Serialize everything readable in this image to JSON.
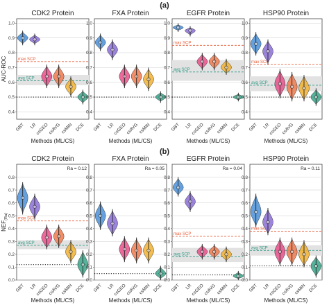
{
  "panel_letters": [
    "(a)",
    "(b)"
  ],
  "method_colors": {
    "GBT": "#4a90d9",
    "LR": "#8b6fd6",
    "csGEO": "#e8508a",
    "csAVG": "#f07a4e",
    "csMIN": "#f2b233",
    "DCE": "#3aa58a"
  },
  "chart_data": [
    {
      "type": "violin",
      "row": 0,
      "title": "CDK2 Protein",
      "ylabel": "AUC-ROC",
      "xlabel": "Methods (ML/CS)",
      "ylim": [
        0.35,
        1.03
      ],
      "yticks": [
        0.4,
        0.5,
        0.6,
        0.7,
        0.8,
        0.9,
        1.0
      ],
      "categories": [
        "GBT",
        "LR",
        "csGEO",
        "csAVG",
        "csMIN",
        "DCE"
      ],
      "medians": [
        0.9,
        0.89,
        0.64,
        0.64,
        0.57,
        0.5
      ],
      "ranges": [
        [
          0.86,
          0.94
        ],
        [
          0.86,
          0.92
        ],
        [
          0.57,
          0.71
        ],
        [
          0.57,
          0.71
        ],
        [
          0.51,
          0.63
        ],
        [
          0.46,
          0.54
        ]
      ],
      "max_scp": 0.74,
      "avg_scp": 0.61,
      "scp_band": [
        0.58,
        0.65
      ],
      "random_line": 0.5,
      "max_label": "max SCP",
      "avg_label": "avg SCP"
    },
    {
      "type": "violin",
      "row": 0,
      "title": "FXA Protein",
      "ylabel": "",
      "xlabel": "Methods (ML/CS)",
      "ylim": [
        0.35,
        1.03
      ],
      "yticks": [
        0.4,
        0.5,
        0.6,
        0.7,
        0.8,
        0.9,
        1.0
      ],
      "categories": [
        "GBT",
        "LR",
        "csGEO",
        "csAVG",
        "csMIN",
        "DCE"
      ],
      "medians": [
        0.87,
        0.82,
        0.64,
        0.64,
        0.62,
        0.5
      ],
      "ranges": [
        [
          0.82,
          0.92
        ],
        [
          0.76,
          0.88
        ],
        [
          0.57,
          0.71
        ],
        [
          0.57,
          0.71
        ],
        [
          0.55,
          0.69
        ],
        [
          0.47,
          0.53
        ]
      ],
      "max_scp": null,
      "avg_scp": null,
      "scp_band": null,
      "random_line": 0.5,
      "max_label": "",
      "avg_label": ""
    },
    {
      "type": "violin",
      "row": 0,
      "title": "EGFR Protein",
      "ylabel": "",
      "xlabel": "Methods (ML/CS)",
      "ylim": [
        0.35,
        1.03
      ],
      "yticks": [
        0.4,
        0.5,
        0.6,
        0.7,
        0.8,
        0.9,
        1.0
      ],
      "categories": [
        "GBT",
        "LR",
        "csGEO",
        "csAVG",
        "csMIN",
        "DCE"
      ],
      "medians": [
        0.97,
        0.95,
        0.74,
        0.74,
        0.7,
        0.5
      ],
      "ranges": [
        [
          0.95,
          0.99
        ],
        [
          0.92,
          0.97
        ],
        [
          0.69,
          0.79
        ],
        [
          0.69,
          0.79
        ],
        [
          0.66,
          0.75
        ],
        [
          0.48,
          0.52
        ]
      ],
      "max_scp": 0.85,
      "avg_scp": 0.67,
      "scp_band": [
        0.61,
        0.75
      ],
      "random_line": 0.5,
      "max_label": "max SCP",
      "avg_label": "avg SCP"
    },
    {
      "type": "violin",
      "row": 0,
      "title": "HSP90 Protein",
      "ylabel": "",
      "xlabel": "Methods (ML/CS)",
      "ylim": [
        0.35,
        1.03
      ],
      "yticks": [
        0.4,
        0.5,
        0.6,
        0.7,
        0.8,
        0.9,
        1.0
      ],
      "categories": [
        "GBT",
        "LR",
        "csGEO",
        "csAVG",
        "csMIN",
        "DCE"
      ],
      "medians": [
        0.86,
        0.81,
        0.59,
        0.57,
        0.56,
        0.5
      ],
      "ranges": [
        [
          0.79,
          0.93
        ],
        [
          0.73,
          0.88
        ],
        [
          0.5,
          0.68
        ],
        [
          0.48,
          0.66
        ],
        [
          0.48,
          0.64
        ],
        [
          0.45,
          0.55
        ]
      ],
      "max_scp": 0.72,
      "avg_scp": 0.58,
      "scp_band": [
        0.54,
        0.64
      ],
      "random_line": 0.5,
      "max_label": "max SCP",
      "avg_label": "avg SCP"
    },
    {
      "type": "violin",
      "row": 1,
      "title": "CDK2 Protein",
      "ra": "Ra = 0.12",
      "ylabel": "NEF",
      "ylabel_sub": "(Ra)",
      "xlabel": "Methods (ML/CS)",
      "ylim": [
        0.0,
        0.9
      ],
      "yticks": [
        0.0,
        0.1,
        0.2,
        0.3,
        0.4,
        0.5,
        0.6,
        0.7,
        0.8
      ],
      "categories": [
        "GBT",
        "LR",
        "csGEO",
        "csAVG",
        "csMIN",
        "DCE"
      ],
      "medians": [
        0.64,
        0.57,
        0.33,
        0.34,
        0.22,
        0.12
      ],
      "ranges": [
        [
          0.52,
          0.75
        ],
        [
          0.48,
          0.66
        ],
        [
          0.25,
          0.42
        ],
        [
          0.26,
          0.42
        ],
        [
          0.14,
          0.3
        ],
        [
          0.03,
          0.22
        ]
      ],
      "max_scp": 0.46,
      "avg_scp": 0.27,
      "scp_band": [
        0.24,
        0.31
      ],
      "random_line": 0.12,
      "max_label": "max SCP",
      "avg_label": "avg SCP"
    },
    {
      "type": "violin",
      "row": 1,
      "title": "FXA Protein",
      "ra": "Ra = 0.05",
      "ylabel": "",
      "xlabel": "Methods (ML/CS)",
      "ylim": [
        0.0,
        0.9
      ],
      "yticks": [
        0.0,
        0.1,
        0.2,
        0.3,
        0.4,
        0.5,
        0.6,
        0.7,
        0.8
      ],
      "categories": [
        "GBT",
        "LR",
        "csGEO",
        "csAVG",
        "csMIN",
        "DCE"
      ],
      "medians": [
        0.5,
        0.44,
        0.24,
        0.23,
        0.23,
        0.05
      ],
      "ranges": [
        [
          0.4,
          0.6
        ],
        [
          0.35,
          0.54
        ],
        [
          0.15,
          0.33
        ],
        [
          0.14,
          0.32
        ],
        [
          0.14,
          0.32
        ],
        [
          0.01,
          0.1
        ]
      ],
      "max_scp": null,
      "avg_scp": null,
      "scp_band": null,
      "random_line": 0.05,
      "max_label": "",
      "avg_label": ""
    },
    {
      "type": "violin",
      "row": 1,
      "title": "EGFR Protein",
      "ra": "Ra = 0.04",
      "ylabel": "",
      "xlabel": "Methods (ML/CS)",
      "ylim": [
        0.0,
        0.9
      ],
      "yticks": [
        0.0,
        0.1,
        0.2,
        0.3,
        0.4,
        0.5,
        0.6,
        0.7,
        0.8
      ],
      "categories": [
        "GBT",
        "LR",
        "csGEO",
        "csAVG",
        "csMIN",
        "DCE"
      ],
      "medians": [
        0.72,
        0.61,
        0.22,
        0.22,
        0.2,
        0.03
      ],
      "ranges": [
        [
          0.66,
          0.79
        ],
        [
          0.54,
          0.68
        ],
        [
          0.17,
          0.27
        ],
        [
          0.17,
          0.27
        ],
        [
          0.15,
          0.25
        ],
        [
          0.01,
          0.06
        ]
      ],
      "max_scp": 0.34,
      "avg_scp": 0.18,
      "scp_band": [
        0.14,
        0.25
      ],
      "random_line": 0.04,
      "max_label": "max SCP",
      "avg_label": "avg SCP"
    },
    {
      "type": "violin",
      "row": 1,
      "title": "HSP90 Protein",
      "ra": "Ra = 0.11",
      "ylabel": "",
      "xlabel": "Methods (ML/CS)",
      "ylim": [
        0.0,
        0.9
      ],
      "yticks": [
        0.0,
        0.1,
        0.2,
        0.3,
        0.4,
        0.5,
        0.6,
        0.7,
        0.8
      ],
      "categories": [
        "GBT",
        "LR",
        "csGEO",
        "csAVG",
        "csMIN",
        "DCE"
      ],
      "medians": [
        0.53,
        0.45,
        0.22,
        0.22,
        0.2,
        0.11
      ],
      "ranges": [
        [
          0.42,
          0.66
        ],
        [
          0.36,
          0.55
        ],
        [
          0.12,
          0.32
        ],
        [
          0.12,
          0.32
        ],
        [
          0.11,
          0.3
        ],
        [
          0.03,
          0.18
        ]
      ],
      "max_scp": 0.38,
      "avg_scp": 0.23,
      "scp_band": [
        0.19,
        0.27
      ],
      "random_line": 0.11,
      "max_label": "max SCP",
      "avg_label": "avg SCP"
    }
  ]
}
